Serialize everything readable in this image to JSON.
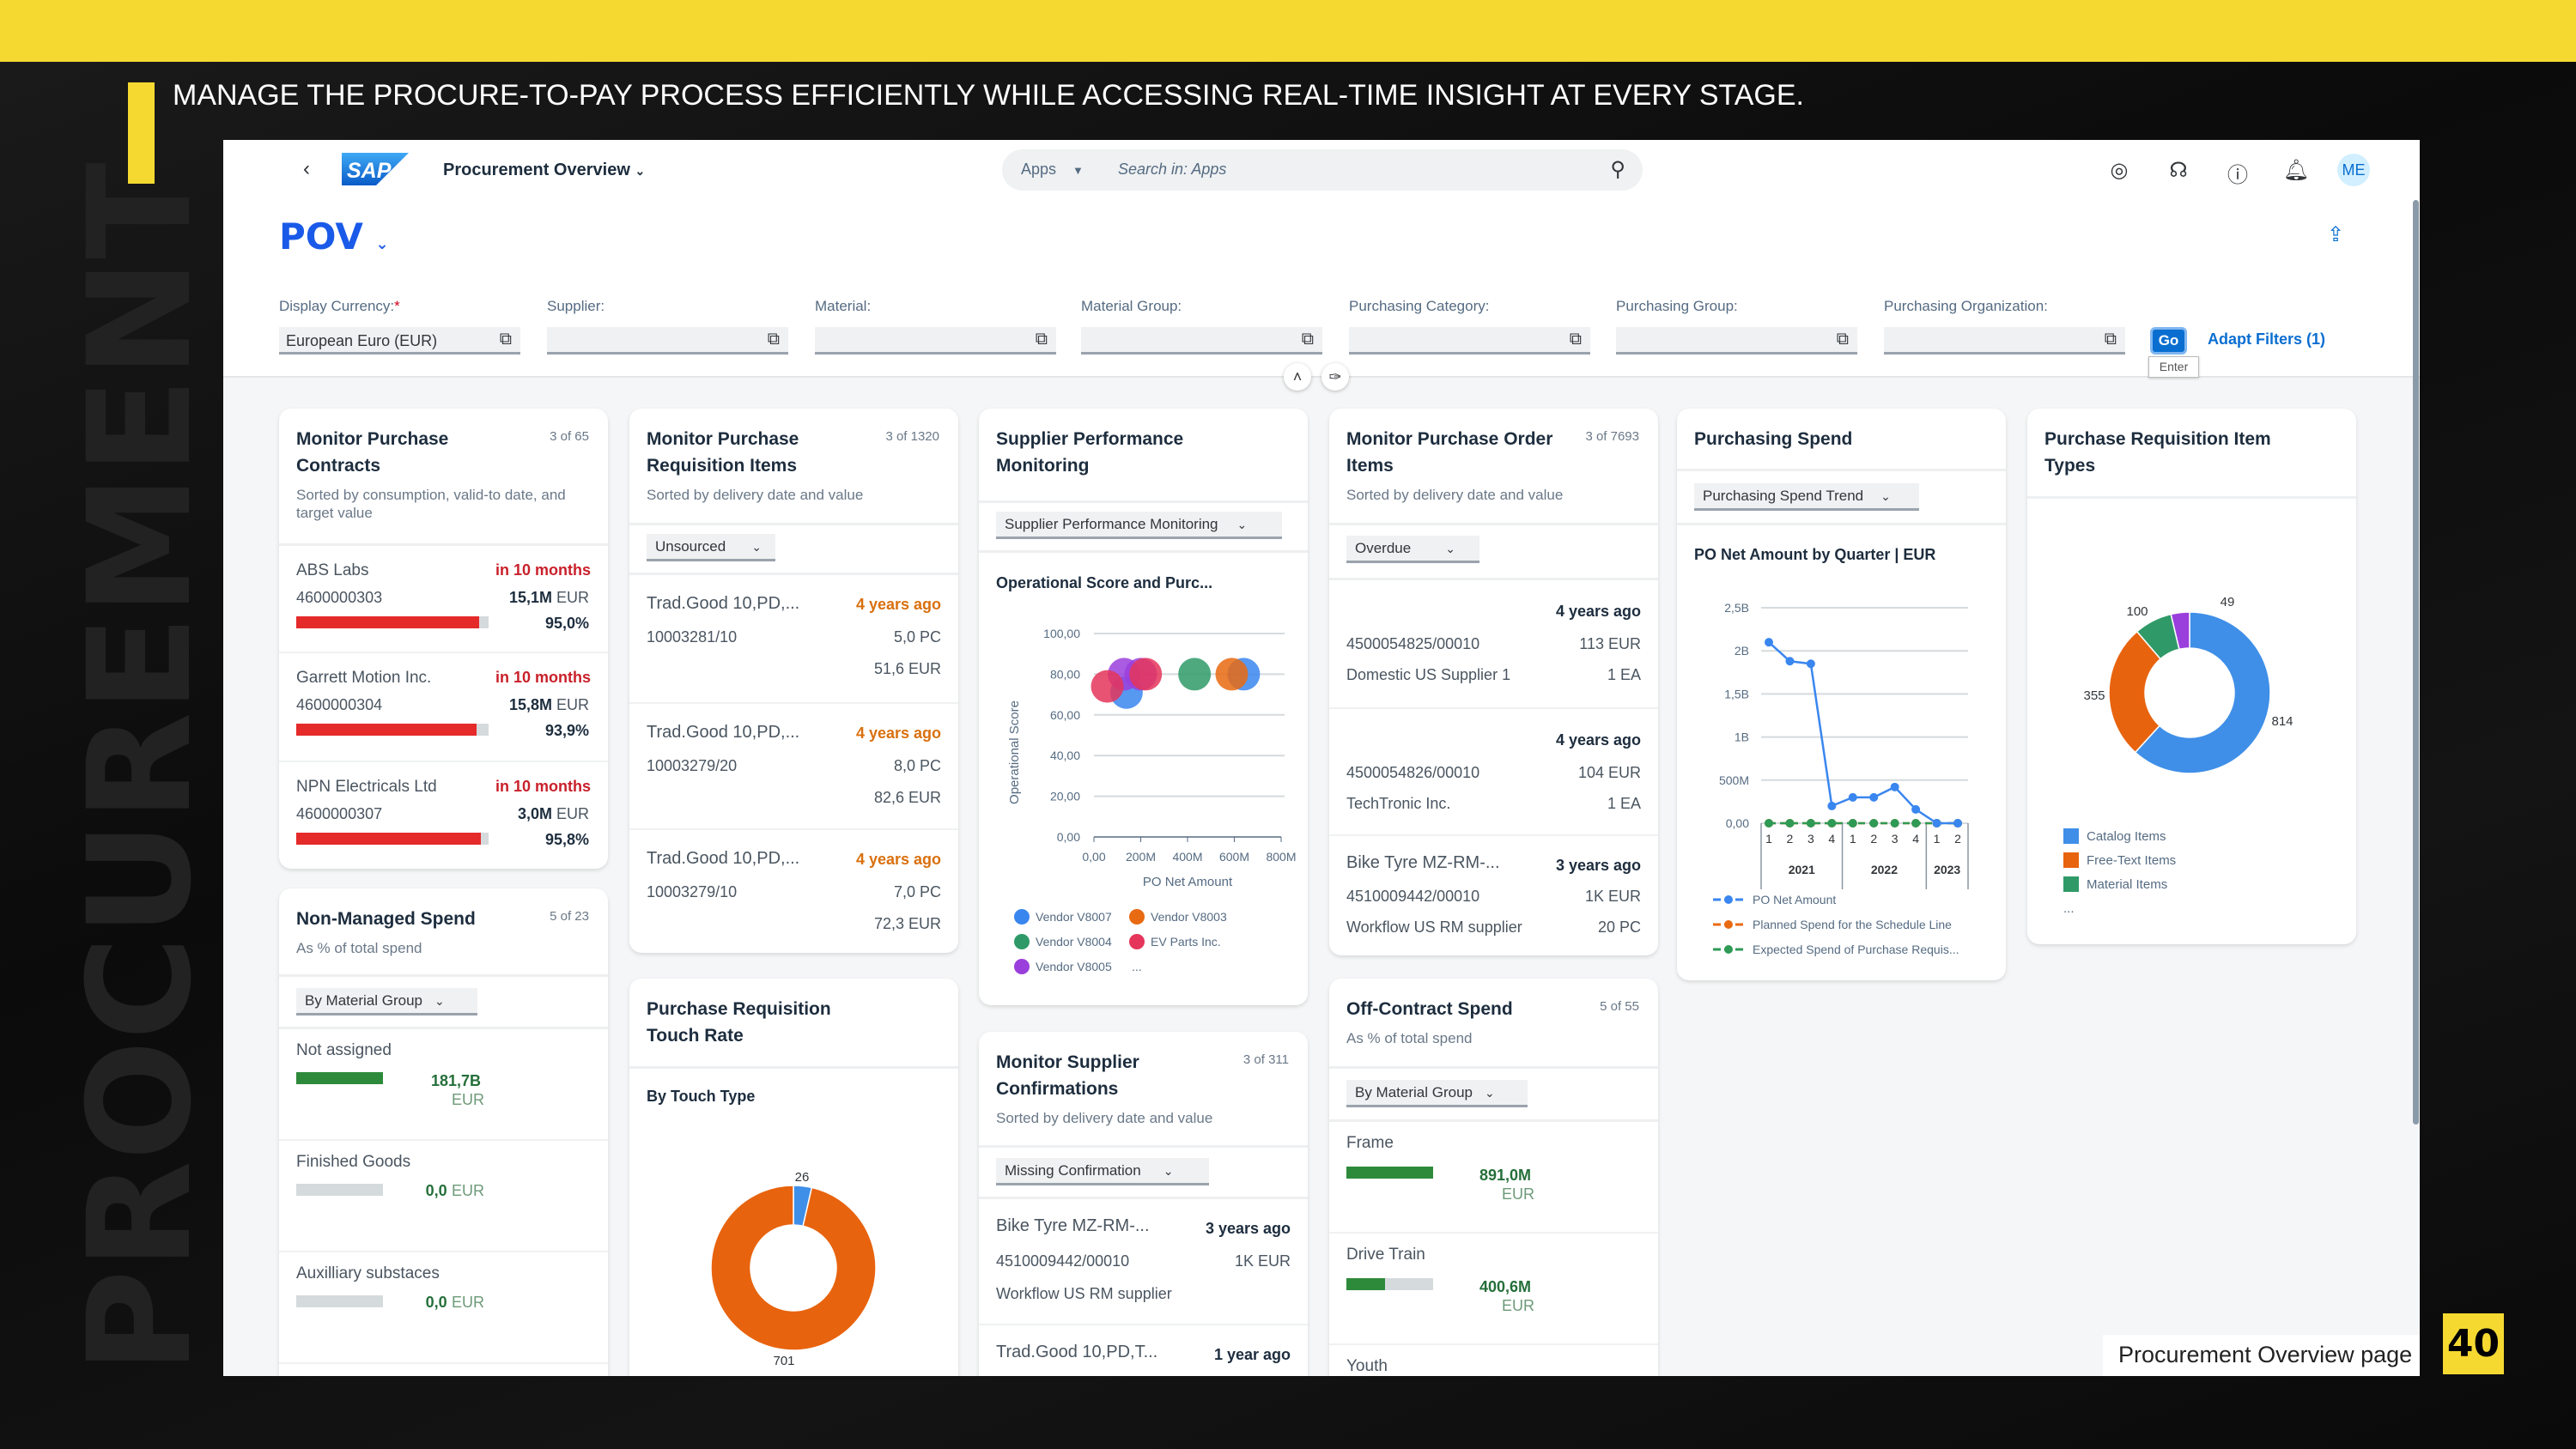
{
  "slide": {
    "headline": "MANAGE THE PROCURE-TO-PAY PROCESS EFFICIENTLY WHILE ACCESSING REAL-TIME INSIGHT AT EVERY STAGE.",
    "watermark": "PROCUREMENT",
    "caption": "Procurement Overview page",
    "page_number": "40",
    "accent_color": "#f5d931"
  },
  "shell": {
    "back_icon": "chevron-left-icon",
    "logo": "SAP",
    "app_title": "Procurement Overview",
    "search_scope": "Apps",
    "search_placeholder": "Search in: Apps",
    "icons": [
      "joule-icon",
      "headset-icon",
      "help-icon",
      "bell-icon"
    ],
    "avatar": "ME"
  },
  "page": {
    "title": "POV",
    "share_icon": "share-icon"
  },
  "filters": {
    "fields": [
      {
        "label": "Display Currency:",
        "required": "*",
        "value": "European Euro (EUR)"
      },
      {
        "label": "Supplier:",
        "value": ""
      },
      {
        "label": "Material:",
        "value": ""
      },
      {
        "label": "Material Group:",
        "value": ""
      },
      {
        "label": "Purchasing Category:",
        "value": ""
      },
      {
        "label": "Purchasing Group:",
        "value": ""
      },
      {
        "label": "Purchasing Organization:",
        "value": ""
      }
    ],
    "go": "Go",
    "go_tooltip": "Enter",
    "adapt": "Adapt Filters (1)"
  },
  "cards": {
    "contracts": {
      "title": "Monitor Purchase Contracts",
      "count": "3 of 65",
      "subtitle": "Sorted by consumption, valid-to date, and target value",
      "rows": [
        {
          "name": "ABS Labs",
          "due": "in 10 months",
          "id": "4600000303",
          "amount": "15,1M",
          "unit": "EUR",
          "pct_label": "95,0%",
          "pct": 95.0
        },
        {
          "name": "Garrett Motion Inc.",
          "due": "in 10 months",
          "id": "4600000304",
          "amount": "15,8M",
          "unit": "EUR",
          "pct_label": "93,9%",
          "pct": 93.9
        },
        {
          "name": "NPN Electricals Ltd",
          "due": "in 10 months",
          "id": "4600000307",
          "amount": "3,0M",
          "unit": "EUR",
          "pct_label": "95,8%",
          "pct": 95.8
        }
      ]
    },
    "nonmanaged": {
      "title": "Non-Managed Spend",
      "count": "5 of 23",
      "subtitle": "As % of total spend",
      "dropdown": "By Material Group",
      "rows": [
        {
          "name": "Not assigned",
          "value": "181,7B",
          "unit": "EUR",
          "pct": 100
        },
        {
          "name": "Finished Goods",
          "value": "0,0",
          "unit": "EUR",
          "pct": 0
        },
        {
          "name": "Auxilliary substaces",
          "value": "0,0",
          "unit": "EUR",
          "pct": 0
        }
      ]
    },
    "requisitions": {
      "title": "Monitor Purchase Requisition Items",
      "count": "3 of 1320",
      "subtitle": "Sorted by delivery date and value",
      "dropdown": "Unsourced",
      "rows": [
        {
          "name": "Trad.Good 10,PD,...",
          "age": "4 years ago",
          "id": "10003281/10",
          "qty": "5,0 PC",
          "value": "51,6 EUR"
        },
        {
          "name": "Trad.Good 10,PD,...",
          "age": "4 years ago",
          "id": "10003279/20",
          "qty": "8,0 PC",
          "value": "82,6 EUR"
        },
        {
          "name": "Trad.Good 10,PD,...",
          "age": "4 years ago",
          "id": "10003279/10",
          "qty": "7,0 PC",
          "value": "72,3 EUR"
        }
      ]
    },
    "touchrate": {
      "title": "Purchase Requisition Touch Rate",
      "chart_title": "By Touch Type",
      "chart_data": {
        "type": "pie",
        "donut": true,
        "values": [
          26,
          701
        ],
        "labels": [
          "26",
          "701"
        ],
        "colors": [
          "#3f8fe8",
          "#e8630e"
        ]
      }
    },
    "supplierperf": {
      "title": "Supplier Performance Monitoring",
      "dropdown": "Supplier Performance Monitoring",
      "chart_title": "Operational Score and Purc...",
      "chart_data": {
        "type": "scatter",
        "xlabel": "PO Net Amount",
        "ylabel": "Operational Score",
        "xlim": [
          0,
          800000000
        ],
        "ylim": [
          0,
          100
        ],
        "xticks": [
          "0,00",
          "200M",
          "400M",
          "600M",
          "800M"
        ],
        "yticks": [
          "0,00",
          "20,00",
          "40,00",
          "60,00",
          "80,00",
          "100,00"
        ],
        "grid": true,
        "legend": [
          "Vendor V8007",
          "Vendor V8003",
          "Vendor V8004",
          "EV Parts Inc.",
          "Vendor V8005",
          "..."
        ],
        "series": [
          {
            "name": "Vendor V8007",
            "color": "#3a86ef",
            "points": [
              [
                640000000,
                80
              ],
              [
                139000000,
                71
              ]
            ]
          },
          {
            "name": "Vendor V8003",
            "color": "#e86a12",
            "points": [
              [
                589000000,
                80
              ]
            ]
          },
          {
            "name": "Vendor V8004",
            "color": "#2f9a68",
            "points": [
              [
                430000000,
                80
              ]
            ]
          },
          {
            "name": "Vendor V8005",
            "color": "#9a3fdc",
            "points": [
              [
                129000000,
                80
              ],
              [
                200000000,
                80
              ]
            ]
          },
          {
            "name": "EV Parts Inc.",
            "color": "#e5355b",
            "points": [
              [
                221000000,
                80
              ],
              [
                57000000,
                74
              ]
            ]
          }
        ]
      }
    },
    "confirmations": {
      "title": "Monitor Supplier Confirmations",
      "count": "3 of 311",
      "subtitle": "Sorted by delivery date and value",
      "dropdown": "Missing Confirmation",
      "rows": [
        {
          "name": "Bike Tyre MZ-RM-...",
          "age": "3 years ago",
          "id": "4510009442/00010",
          "value": "1K EUR",
          "supplier": "Workflow US RM supplier"
        },
        {
          "name": "Trad.Good 10,PD,T...",
          "age": "1 year ago"
        }
      ]
    },
    "poitems": {
      "title": "Monitor Purchase Order Items",
      "count": "3 of 7693",
      "subtitle": "Sorted by delivery date and value",
      "dropdown": "Overdue",
      "rows": [
        {
          "name": "",
          "age": "4 years ago",
          "id": "4500054825/00010",
          "value": "113 EUR",
          "supplier": "Domestic US Supplier 1",
          "qty": "1 EA"
        },
        {
          "name": "",
          "age": "4 years ago",
          "id": "4500054826/00010",
          "value": "104 EUR",
          "supplier": "TechTronic Inc.",
          "qty": "1 EA"
        },
        {
          "name": "Bike Tyre MZ-RM-...",
          "age": "3 years ago",
          "id": "4510009442/00010",
          "value": "1K EUR",
          "supplier": "Workflow US RM supplier",
          "qty": "20 PC"
        }
      ]
    },
    "offcontract": {
      "title": "Off-Contract Spend",
      "count": "5 of 55",
      "subtitle": "As % of total spend",
      "dropdown": "By Material Group",
      "rows": [
        {
          "name": "Frame",
          "value": "891,0M",
          "unit": "EUR",
          "pct": 100
        },
        {
          "name": "Drive Train",
          "value": "400,6M",
          "unit": "EUR",
          "pct": 45
        },
        {
          "name": "Youth"
        }
      ]
    },
    "spend": {
      "title": "Purchasing Spend",
      "dropdown": "Purchasing Spend Trend",
      "chart_title": "PO Net Amount by Quarter | EUR",
      "chart_data": {
        "type": "line",
        "x": [
          "1",
          "2",
          "3",
          "4",
          "1",
          "2",
          "3",
          "4",
          "1",
          "2"
        ],
        "years": [
          {
            "label": "2021",
            "quarters": 4
          },
          {
            "label": "2022",
            "quarters": 4
          },
          {
            "label": "2023",
            "quarters": 2
          }
        ],
        "ylim": [
          0,
          2500000000
        ],
        "yticks": [
          "0,00",
          "500M",
          "1B",
          "1,5B",
          "2B",
          "2,5B"
        ],
        "grid": true,
        "legend_position": "bottom",
        "series": [
          {
            "name": "PO Net Amount",
            "color": "#3a86ef",
            "values": [
              2100000000,
              1880000000,
              1850000000,
              200000000,
              300000000,
              300000000,
              420000000,
              160000000,
              0,
              0
            ]
          },
          {
            "name": "Planned Spend for the Schedule Line",
            "color": "#e86a12",
            "values": [
              0,
              0,
              0,
              0,
              0,
              0,
              0,
              0,
              0,
              0
            ]
          },
          {
            "name": "Expected Spend of Purchase Requis...",
            "color": "#2f9a55",
            "values": [
              0,
              0,
              0,
              0,
              0,
              0,
              0,
              0,
              0,
              0
            ]
          }
        ]
      }
    },
    "itemtypes": {
      "title": "Purchase Requisition Item Types",
      "chart_data": {
        "type": "pie",
        "donut": true,
        "values": [
          814,
          355,
          100,
          49
        ],
        "labels": [
          "814",
          "355",
          "100",
          "49"
        ],
        "colors": [
          "#3f8fe8",
          "#e8630e",
          "#2f9a68",
          "#9a3fdc"
        ],
        "legend": [
          "Catalog Items",
          "Free-Text Items",
          "Material Items",
          "..."
        ]
      }
    }
  }
}
